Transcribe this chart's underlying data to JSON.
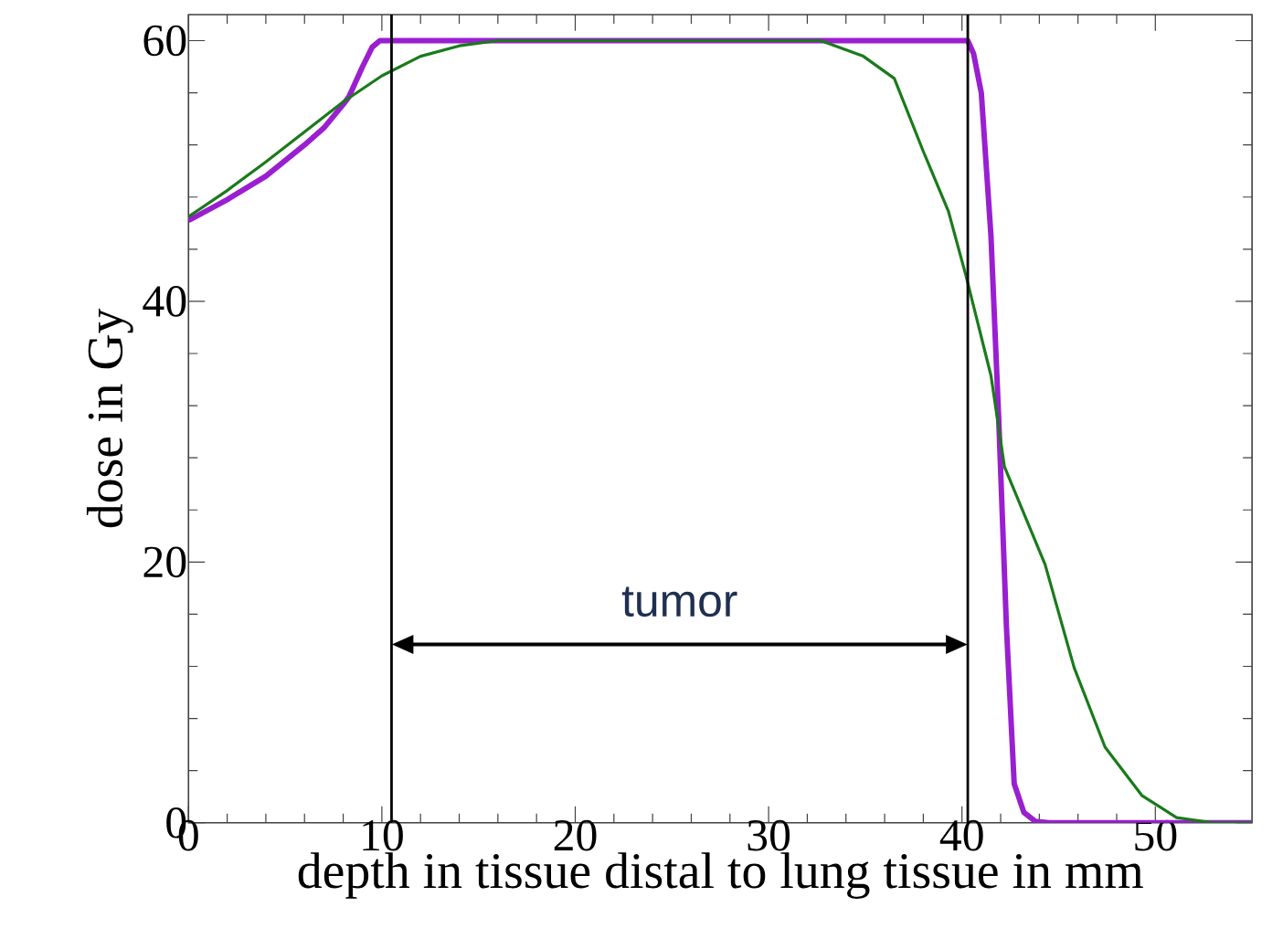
{
  "chart_data": {
    "type": "line",
    "xlabel": "depth in tissue distal to lung tissue in mm",
    "ylabel": "dose in Gy",
    "xlim": [
      0,
      55
    ],
    "ylim": [
      0,
      62
    ],
    "xticks": [
      0,
      10,
      20,
      30,
      40,
      50
    ],
    "yticks": [
      0,
      20,
      40,
      60
    ],
    "marker": "none",
    "line_style": "solid",
    "series": [
      {
        "color": "#9a1fd0",
        "x": [
          0,
          2,
          4,
          6,
          7,
          8,
          8.3,
          9,
          9.5,
          9.9,
          12,
          20,
          30,
          40.3,
          40.6,
          41,
          41.5,
          41.9,
          42.3,
          42.7,
          43.2,
          43.8,
          44.5,
          50,
          55
        ],
        "values": [
          46.2,
          47.8,
          49.6,
          52,
          53.3,
          55.1,
          55.7,
          58,
          59.5,
          60,
          60,
          60,
          60,
          60,
          59,
          56,
          45,
          31,
          15,
          3,
          0.8,
          0.1,
          0,
          0,
          0
        ]
      },
      {
        "color": "#1a7a1a",
        "x": [
          0,
          2,
          4,
          6,
          8,
          10,
          12,
          14,
          16,
          20,
          30,
          32.7,
          34.9,
          36.5,
          38,
          39.3,
          40.2,
          41.5,
          42.2,
          44.3,
          45.8,
          47.4,
          49.3,
          51.1,
          53,
          55
        ],
        "values": [
          46.5,
          48.5,
          50.7,
          53,
          55.3,
          57.3,
          58.8,
          59.6,
          60,
          60,
          60,
          60,
          58.8,
          57.1,
          51.5,
          46.9,
          42,
          34.3,
          27.3,
          19.8,
          11.9,
          5.8,
          2.1,
          0.4,
          0,
          0
        ]
      }
    ],
    "ref_lines": [
      {
        "axis": "x",
        "value": 10.5,
        "color": "#000000"
      },
      {
        "axis": "x",
        "value": 40.3,
        "color": "#000000"
      }
    ],
    "annotations": [
      "tumor"
    ]
  }
}
